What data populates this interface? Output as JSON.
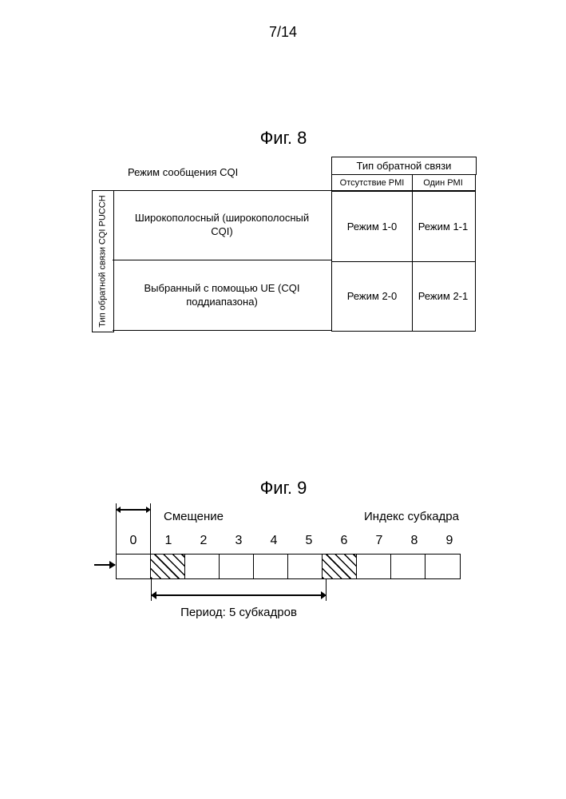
{
  "page_number": "7/14",
  "fig8": {
    "title": "Фиг. 8",
    "mode_label": "Режим сообщения CQI",
    "feedback_header": "Тип обратной связи",
    "col_no_pmi": "Отсутствие PMI",
    "col_one_pmi": "Один PMI",
    "vertical_label": "Тип обратной связи CQI PUCCH",
    "row1_label": "Широкополосный (широкополосный CQI)",
    "row2_label": "Выбранный с помощью UE (CQI поддиапазона)",
    "cells": {
      "r1c1": "Режим 1-0",
      "r1c2": "Режим 1-1",
      "r2c1": "Режим 2-0",
      "r2c2": "Режим 2-1"
    }
  },
  "fig9": {
    "title": "Фиг. 9",
    "offset_label": "Смещение",
    "index_label": "Индекс субкадра",
    "period_label": "Период: 5 субкадров",
    "indices": [
      "0",
      "1",
      "2",
      "3",
      "4",
      "5",
      "6",
      "7",
      "8",
      "9"
    ],
    "hatched_indices": [
      1,
      6
    ],
    "period_cells": 5,
    "offset_cells": 1
  },
  "colors": {
    "text": "#000000",
    "background": "#ffffff",
    "border": "#000000"
  }
}
